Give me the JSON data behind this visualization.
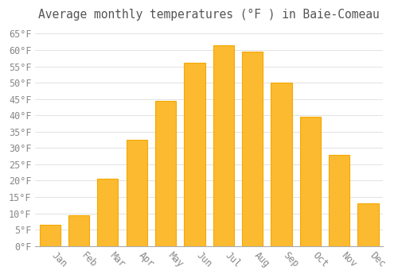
{
  "title": "Average monthly temperatures (°F ) in Baie-Comeau",
  "months": [
    "Jan",
    "Feb",
    "Mar",
    "Apr",
    "May",
    "Jun",
    "Jul",
    "Aug",
    "Sep",
    "Oct",
    "Nov",
    "Dec"
  ],
  "values": [
    6.5,
    9.5,
    20.5,
    32.5,
    44.5,
    56.0,
    61.5,
    59.5,
    50.0,
    39.5,
    28.0,
    13.0
  ],
  "bar_color": "#FBBA30",
  "bar_edge_color": "#F5A800",
  "background_color": "#FFFFFF",
  "grid_color": "#DDDDDD",
  "text_color": "#888888",
  "ylim": [
    0,
    67
  ],
  "yticks": [
    0,
    5,
    10,
    15,
    20,
    25,
    30,
    35,
    40,
    45,
    50,
    55,
    60,
    65
  ],
  "title_fontsize": 10.5,
  "tick_fontsize": 8.5,
  "bar_width": 0.72,
  "xlabel_rotation": -45,
  "xlabel_ha": "left"
}
